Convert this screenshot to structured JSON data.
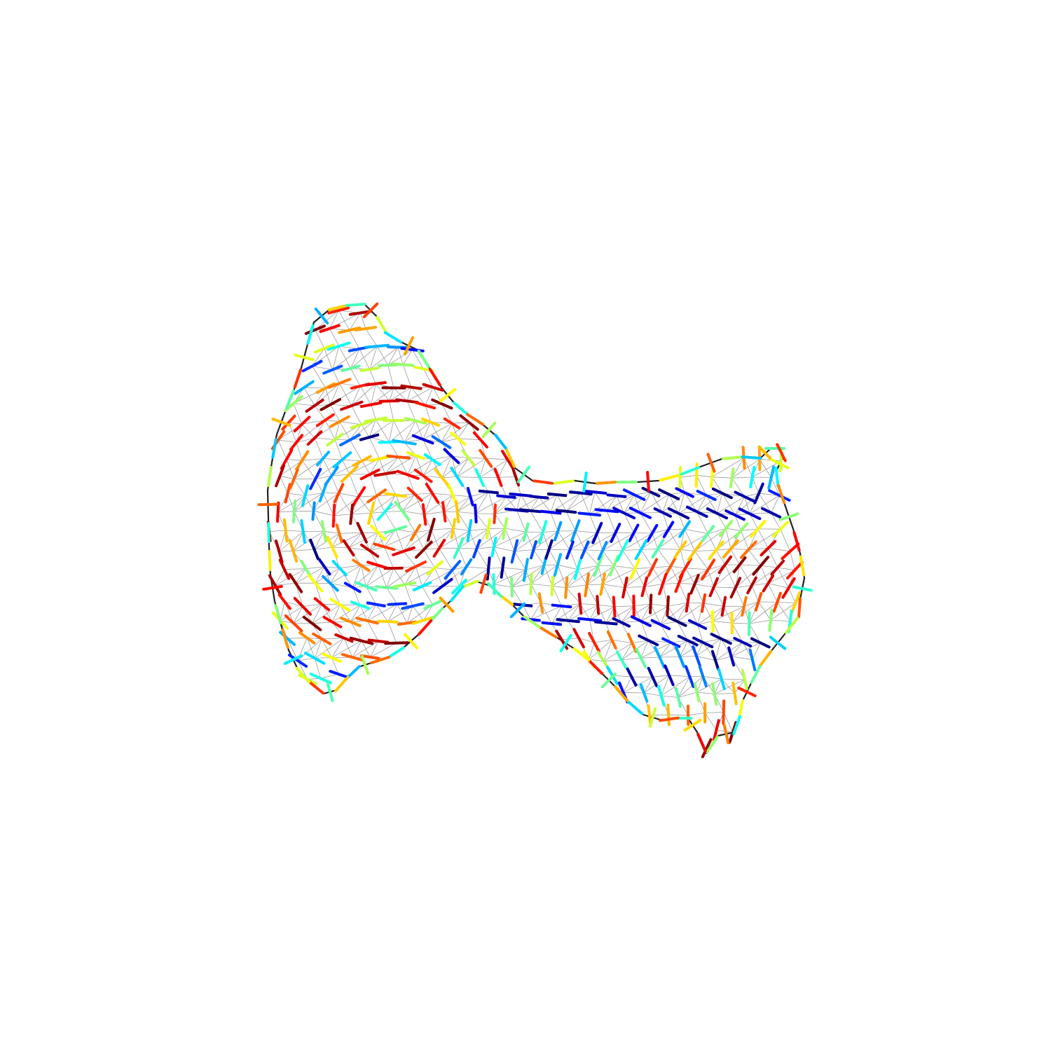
{
  "figure": {
    "kind": "triangulated surface mesh with director / cross-field glyphs",
    "background": "#ffffff",
    "outline_color": "#222222",
    "mesh_edge_color": "#9a9a9a",
    "colormap": "jet",
    "colormap_stops": [
      "#00007f",
      "#0000ff",
      "#007fff",
      "#00ffff",
      "#7fff7f",
      "#ffff00",
      "#ff7f00",
      "#ff0000",
      "#7f0000"
    ],
    "glyph_style": "short straight line segments, one per mesh vertex, colored by scalar value"
  }
}
